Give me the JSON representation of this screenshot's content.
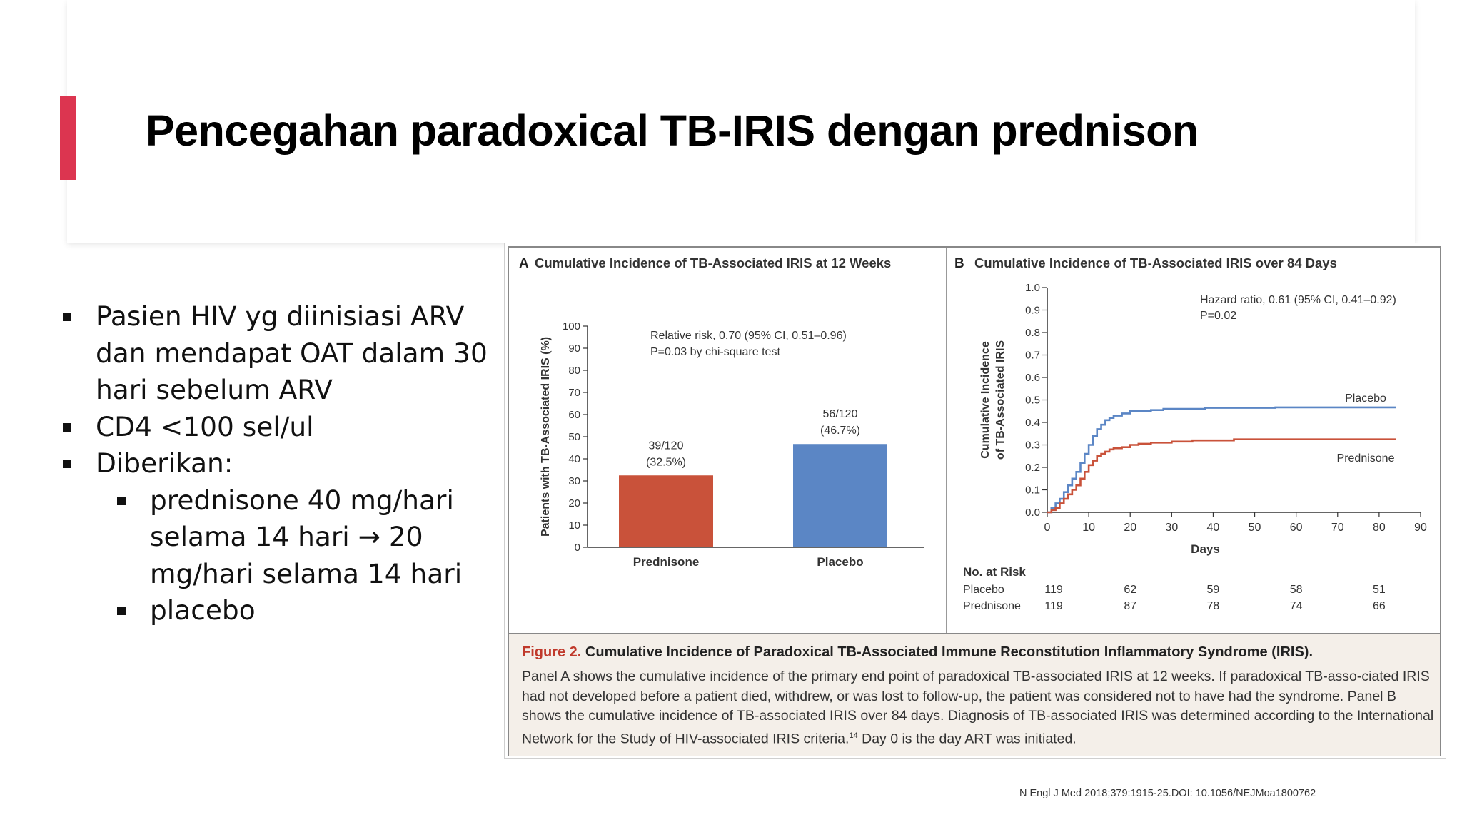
{
  "slide": {
    "title": "Pencegahan paradoxical TB-IRIS dengan prednison",
    "bullets": [
      {
        "text": "Pasien HIV yg diinisiasi ARV\ndan mendapat OAT dalam 30\nhari sebelum ARV",
        "level": 1
      },
      {
        "text": "CD4 <100 sel/ul",
        "level": 1
      },
      {
        "text": "Diberikan:",
        "level": 1
      },
      {
        "text": "prednisone 40 mg/hari\nselama 14 hari → 20\nmg/hari selama 14 hari",
        "level": 2
      },
      {
        "text": "placebo",
        "level": 2
      }
    ],
    "source": "N Engl J Med 2018;379:1915-25.DOI: 10.1056/NEJMoa1800762"
  },
  "figure": {
    "caption_label": "Figure 2.",
    "caption_title": "Cumulative Incidence of Paradoxical TB-Associated Immune Reconstitution Inflammatory Syndrome (IRIS).",
    "caption_body": "Panel A shows the cumulative incidence of the primary end point of paradoxical TB-associated IRIS at 12 weeks. If paradoxical TB-asso-ciated IRIS had not developed before a patient died, withdrew, or was lost to follow-up, the patient was considered not to have had the syndrome. Panel B shows the cumulative incidence of TB-associated IRIS over 84 days. Diagnosis of TB-associated IRIS was determined according to the International Network for the Study of HIV-associated IRIS criteria.",
    "caption_sup": "14",
    "caption_tail": " Day 0 is the day ART was initiated."
  },
  "chart_data": [
    {
      "panel": "A",
      "type": "bar",
      "title": "Cumulative Incidence of TB-Associated IRIS at 12 Weeks",
      "ylabel": "Patients with TB-Associated IRIS (%)",
      "ylim": [
        0,
        100
      ],
      "yticks": [
        0,
        10,
        20,
        30,
        40,
        50,
        60,
        70,
        80,
        90,
        100
      ],
      "categories": [
        "Prednisone",
        "Placebo"
      ],
      "values": [
        32.5,
        46.7
      ],
      "bar_labels": [
        [
          "39/120",
          "(32.5%)"
        ],
        [
          "56/120",
          "(46.7%)"
        ]
      ],
      "colors": [
        "#c9523a",
        "#5b86c5"
      ],
      "annotation": [
        "Relative risk, 0.70 (95% CI, 0.51–0.96)",
        "P=0.03 by chi-square test"
      ]
    },
    {
      "panel": "B",
      "type": "line",
      "title": "Cumulative Incidence of TB-Associated IRIS over 84 Days",
      "ylabel": [
        "Cumulative Incidence",
        "of TB-Associated IRIS"
      ],
      "xlabel": "Days",
      "xlim": [
        0,
        90
      ],
      "ylim": [
        0,
        1.0
      ],
      "xticks": [
        0,
        10,
        20,
        30,
        40,
        50,
        60,
        70,
        80,
        90
      ],
      "yticks": [
        "0.0",
        "0.1",
        "0.2",
        "0.3",
        "0.4",
        "0.5",
        "0.6",
        "0.7",
        "0.8",
        "0.9",
        "1.0"
      ],
      "annotation": [
        "Hazard ratio, 0.61 (95% CI, 0.41–0.92)",
        "P=0.02"
      ],
      "series": [
        {
          "name": "Placebo",
          "color": "#5b86c5",
          "x": [
            0,
            1,
            2,
            3,
            4,
            5,
            6,
            7,
            8,
            9,
            10,
            11,
            12,
            13,
            14,
            15,
            16,
            18,
            20,
            22,
            25,
            28,
            32,
            38,
            45,
            55,
            65,
            75,
            84
          ],
          "y": [
            0,
            0.02,
            0.04,
            0.06,
            0.09,
            0.12,
            0.15,
            0.18,
            0.22,
            0.26,
            0.3,
            0.34,
            0.37,
            0.39,
            0.41,
            0.42,
            0.43,
            0.44,
            0.45,
            0.45,
            0.455,
            0.46,
            0.46,
            0.465,
            0.465,
            0.467,
            0.467,
            0.467,
            0.467
          ]
        },
        {
          "name": "Prednisone",
          "color": "#c9523a",
          "x": [
            0,
            1,
            2,
            3,
            4,
            5,
            6,
            7,
            8,
            9,
            10,
            11,
            12,
            13,
            14,
            15,
            16,
            18,
            20,
            22,
            25,
            30,
            35,
            45,
            55,
            65,
            75,
            84
          ],
          "y": [
            0,
            0.01,
            0.02,
            0.04,
            0.06,
            0.08,
            0.1,
            0.12,
            0.15,
            0.18,
            0.21,
            0.23,
            0.25,
            0.26,
            0.27,
            0.28,
            0.285,
            0.29,
            0.3,
            0.305,
            0.31,
            0.315,
            0.32,
            0.325,
            0.325,
            0.325,
            0.325,
            0.325
          ]
        }
      ],
      "series_labels": [
        "Placebo",
        "Prednisone"
      ],
      "no_at_risk": {
        "title": "No. at Risk",
        "days": [
          0,
          20,
          40,
          60,
          80
        ],
        "rows": [
          {
            "name": "Placebo",
            "values": [
              "119",
              "62",
              "59",
              "58",
              "51"
            ]
          },
          {
            "name": "Prednisone",
            "values": [
              "119",
              "87",
              "78",
              "74",
              "66"
            ]
          }
        ]
      }
    }
  ]
}
